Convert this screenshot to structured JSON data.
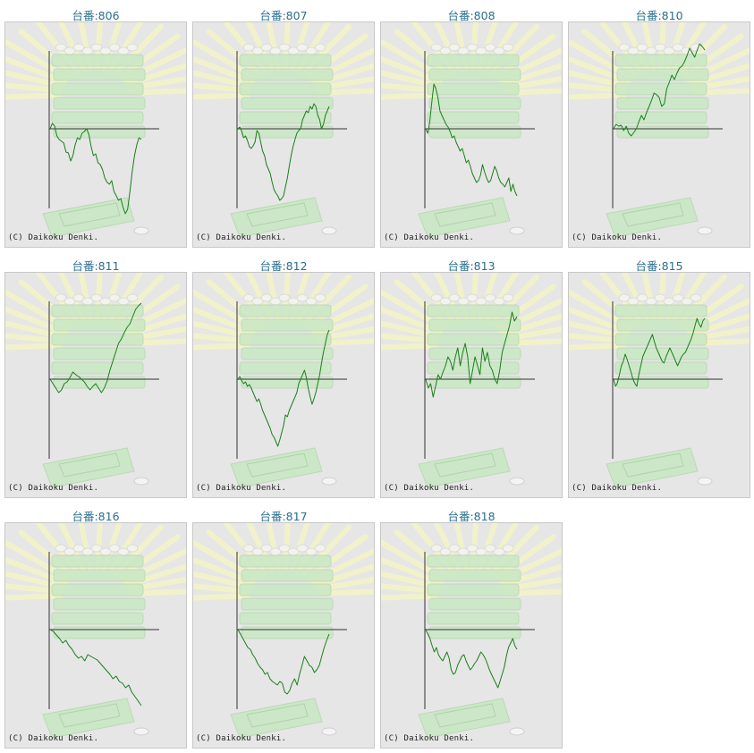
{
  "copyright_text": "(C) Daikoku Denki.",
  "colors": {
    "title": "#2a6f8f",
    "line": "#1a7f1a",
    "axis": "#333333",
    "panel_bg": "#e6e6e6",
    "machine": "#c9e8c4",
    "rays": "#f4f4c8"
  },
  "chart_data": [
    {
      "type": "line",
      "title": "台番:806",
      "y": [
        0,
        6,
        3,
        -8,
        -12,
        -14,
        -16,
        -26,
        -27,
        -36,
        -30,
        -18,
        -10,
        -12,
        -5,
        -3,
        0,
        -6,
        -20,
        -30,
        -28,
        -38,
        -40,
        -46,
        -55,
        -60,
        -62,
        -58,
        -70,
        -75,
        -80,
        -78,
        -88,
        -95,
        -90,
        -70,
        -48,
        -30,
        -18,
        -10,
        -12
      ]
    },
    {
      "type": "line",
      "title": "台番:807",
      "y": [
        0,
        2,
        -3,
        -10,
        -8,
        -13,
        -20,
        -22,
        -19,
        -15,
        -2,
        -5,
        -15,
        -25,
        -30,
        -40,
        -45,
        -50,
        -60,
        -68,
        -72,
        -75,
        -80,
        -78,
        -75,
        -65,
        -55,
        -42,
        -30,
        -20,
        -12,
        -5,
        -2,
        0,
        10,
        15,
        20,
        18,
        25,
        22,
        28,
        25,
        15,
        10,
        0,
        5,
        15,
        20,
        25
      ]
    },
    {
      "type": "line",
      "title": "台番:808",
      "y": [
        0,
        -5,
        8,
        30,
        50,
        45,
        35,
        20,
        15,
        10,
        5,
        2,
        -3,
        -10,
        -8,
        -15,
        -20,
        -25,
        -22,
        -30,
        -38,
        -35,
        -42,
        -50,
        -55,
        -60,
        -58,
        -52,
        -40,
        -48,
        -55,
        -60,
        -58,
        -50,
        -42,
        -47,
        -55,
        -60,
        -62,
        -65,
        -60,
        -55,
        -70,
        -62,
        -70,
        -75
      ]
    },
    {
      "type": "line",
      "title": "台番:810",
      "y": [
        0,
        5,
        3,
        4,
        -2,
        3,
        -5,
        -8,
        -4,
        0,
        8,
        15,
        10,
        18,
        25,
        32,
        40,
        38,
        35,
        25,
        28,
        45,
        52,
        60,
        55,
        62,
        68,
        70,
        75,
        82,
        90,
        85,
        80,
        88,
        95,
        92,
        88
      ]
    },
    {
      "type": "line",
      "title": "台番:811",
      "y": [
        0,
        -5,
        -10,
        -15,
        -12,
        -5,
        -3,
        2,
        8,
        5,
        3,
        0,
        -3,
        -8,
        -12,
        -8,
        -5,
        -10,
        -15,
        -10,
        -2,
        10,
        20,
        30,
        40,
        45,
        52,
        58,
        62,
        70,
        78,
        82,
        85
      ]
    },
    {
      "type": "line",
      "title": "台番:812",
      "y": [
        0,
        3,
        -2,
        -5,
        -3,
        -8,
        -6,
        -10,
        -15,
        -20,
        -25,
        -22,
        -28,
        -35,
        -40,
        -45,
        -50,
        -55,
        -62,
        -65,
        -70,
        -75,
        -68,
        -60,
        -52,
        -40,
        -42,
        -35,
        -30,
        -25,
        -20,
        -15,
        -5,
        0,
        5,
        10,
        2,
        -10,
        -20,
        -28,
        -22,
        -15,
        -5,
        5,
        18,
        30,
        40,
        50,
        55
      ]
    },
    {
      "type": "line",
      "title": "台番:813",
      "y": [
        0,
        -10,
        -5,
        -20,
        -8,
        5,
        0,
        8,
        15,
        25,
        20,
        10,
        25,
        35,
        15,
        30,
        40,
        25,
        -5,
        10,
        25,
        15,
        5,
        35,
        20,
        30,
        15,
        10,
        0,
        -5,
        10,
        30,
        40,
        50,
        60,
        75,
        65,
        70
      ]
    },
    {
      "type": "line",
      "title": "台番:815",
      "y": [
        0,
        -8,
        -4,
        5,
        15,
        20,
        28,
        22,
        15,
        8,
        0,
        -5,
        -8,
        5,
        15,
        25,
        30,
        35,
        40,
        45,
        50,
        42,
        35,
        30,
        25,
        20,
        18,
        25,
        30,
        35,
        30,
        25,
        20,
        15,
        20,
        25,
        28,
        30,
        35,
        40,
        45,
        52,
        60,
        68,
        62,
        58,
        65,
        68
      ]
    },
    {
      "type": "line",
      "title": "台番:816",
      "y": [
        0,
        -2,
        -6,
        -10,
        -15,
        -12,
        -18,
        -22,
        -28,
        -32,
        -30,
        -35,
        -28,
        -30,
        -32,
        -34,
        -38,
        -42,
        -46,
        -50,
        -55,
        -52,
        -58,
        -60,
        -65,
        -62,
        -70,
        -75,
        -80,
        -85
      ]
    },
    {
      "type": "line",
      "title": "台番:817",
      "y": [
        0,
        -5,
        -10,
        -15,
        -20,
        -22,
        -28,
        -32,
        -38,
        -42,
        -45,
        -50,
        -48,
        -55,
        -58,
        -60,
        -62,
        -58,
        -60,
        -70,
        -72,
        -68,
        -60,
        -55,
        -62,
        -50,
        -40,
        -30,
        -35,
        -40,
        -42,
        -48,
        -45,
        -40,
        -30,
        -20,
        -12,
        -5
      ]
    },
    {
      "type": "line",
      "title": "台番:818",
      "y": [
        0,
        -5,
        -10,
        -18,
        -25,
        -20,
        -28,
        -32,
        -35,
        -30,
        -25,
        -32,
        -45,
        -50,
        -48,
        -40,
        -35,
        -30,
        -28,
        -35,
        -40,
        -45,
        -42,
        -38,
        -35,
        -30,
        -25,
        -28,
        -32,
        -38,
        -45,
        -50,
        -55,
        -60,
        -65,
        -58,
        -50,
        -42,
        -30,
        -20,
        -15,
        -10,
        -18,
        -22
      ]
    }
  ]
}
